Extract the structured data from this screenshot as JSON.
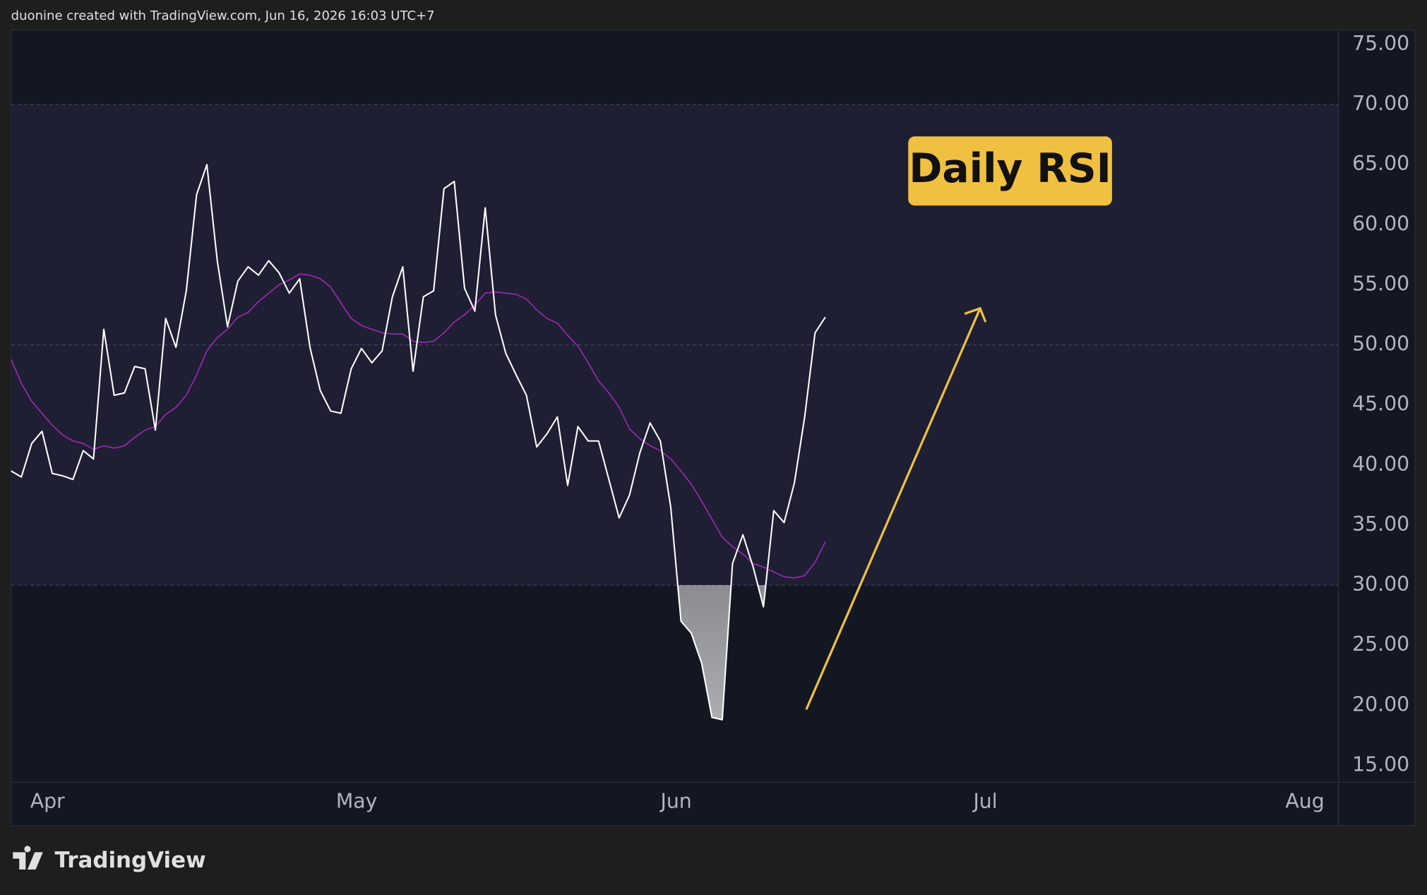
{
  "header": "duonine created with TradingView.com, Jun 16, 2026 16:03 UTC+7",
  "footer": "TradingView",
  "chart_data": {
    "type": "line",
    "annotation": "Daily RSI",
    "x": [
      -3,
      -2,
      -1,
      0,
      1,
      2,
      3,
      4,
      5,
      6,
      7,
      8,
      9,
      10,
      11,
      12,
      13,
      14,
      15,
      16,
      17,
      18,
      19,
      20,
      21,
      22,
      23,
      24,
      25,
      26,
      27,
      28,
      29,
      30,
      31,
      32,
      33,
      34,
      35,
      36,
      37,
      38,
      39,
      40,
      41,
      42,
      43,
      44,
      45,
      46,
      47,
      48,
      49,
      50,
      51,
      52,
      53,
      54,
      55,
      56,
      57,
      58,
      59,
      60,
      61,
      62,
      63,
      64,
      65,
      66,
      67,
      68,
      69,
      70,
      71,
      72,
      73,
      74,
      75,
      76
    ],
    "xlim": [
      -3,
      125.8
    ],
    "xticks": [
      {
        "value": 0,
        "label": "Apr"
      },
      {
        "value": 30,
        "label": "May"
      },
      {
        "value": 61,
        "label": "Jun"
      },
      {
        "value": 91,
        "label": "Jul"
      },
      {
        "value": 122,
        "label": "Aug"
      }
    ],
    "ylim": [
      13.6,
      76.2
    ],
    "yticks": [
      {
        "value": 15,
        "label": "15.00"
      },
      {
        "value": 20,
        "label": "20.00"
      },
      {
        "value": 25,
        "label": "25.00"
      },
      {
        "value": 30,
        "label": "30.00"
      },
      {
        "value": 35,
        "label": "35.00"
      },
      {
        "value": 40,
        "label": "40.00"
      },
      {
        "value": 45,
        "label": "45.00"
      },
      {
        "value": 50,
        "label": "50.00"
      },
      {
        "value": 55,
        "label": "55.00"
      },
      {
        "value": 60,
        "label": "60.00"
      },
      {
        "value": 65,
        "label": "65.00"
      },
      {
        "value": 70,
        "label": "70.00"
      },
      {
        "value": 75,
        "label": "75.00"
      }
    ],
    "hlines": [
      70,
      50,
      30
    ],
    "band": [
      30,
      70
    ],
    "grid": false,
    "series": [
      {
        "color": "#ffffff",
        "values": [
          39.5,
          39.0,
          41.8,
          42.8,
          39.3,
          39.1,
          38.8,
          41.2,
          40.5,
          51.3,
          45.8,
          46.0,
          48.2,
          48.0,
          42.9,
          52.2,
          49.8,
          54.5,
          62.5,
          65.0,
          57.0,
          51.5,
          55.3,
          56.5,
          55.8,
          57.0,
          56.0,
          54.3,
          55.5,
          49.8,
          46.2,
          44.5,
          44.3,
          48.0,
          49.7,
          48.5,
          49.5,
          54.0,
          56.5,
          47.8,
          54.0,
          54.5,
          63.0,
          63.6,
          54.7,
          52.8,
          61.4,
          52.5,
          49.3,
          47.5,
          45.8,
          41.5,
          42.6,
          44.0,
          38.3,
          43.2,
          42.0,
          42.0,
          38.8,
          35.6,
          37.5,
          41.0,
          43.5,
          42.0,
          36.5,
          27.0,
          26.0,
          23.5,
          19.0,
          18.8,
          31.8,
          34.2,
          31.5,
          28.2,
          36.2,
          35.2,
          38.5,
          44.0,
          51.0,
          52.3
        ]
      },
      {
        "color": "#9c27b0",
        "values": [
          48.8,
          46.8,
          45.3,
          44.3,
          43.3,
          42.5,
          42.0,
          41.8,
          41.3,
          41.6,
          41.4,
          41.6,
          42.3,
          42.9,
          43.2,
          44.2,
          44.8,
          45.8,
          47.5,
          49.5,
          50.6,
          51.3,
          52.3,
          52.7,
          53.6,
          54.3,
          55.0,
          55.4,
          55.9,
          55.8,
          55.5,
          54.8,
          53.5,
          52.2,
          51.6,
          51.3,
          51.0,
          50.9,
          50.9,
          50.3,
          50.2,
          50.3,
          51.0,
          51.9,
          52.5,
          53.3,
          54.3,
          54.4,
          54.3,
          54.2,
          53.8,
          52.9,
          52.2,
          51.8,
          50.8,
          49.9,
          48.5,
          47.0,
          46.0,
          44.8,
          43.0,
          42.2,
          41.6,
          41.2,
          40.5,
          39.5,
          38.4,
          37.0,
          35.5,
          34.0,
          33.2,
          32.6,
          31.8,
          31.5,
          31.1,
          30.7,
          30.6,
          30.8,
          31.9,
          33.6
        ]
      }
    ]
  }
}
